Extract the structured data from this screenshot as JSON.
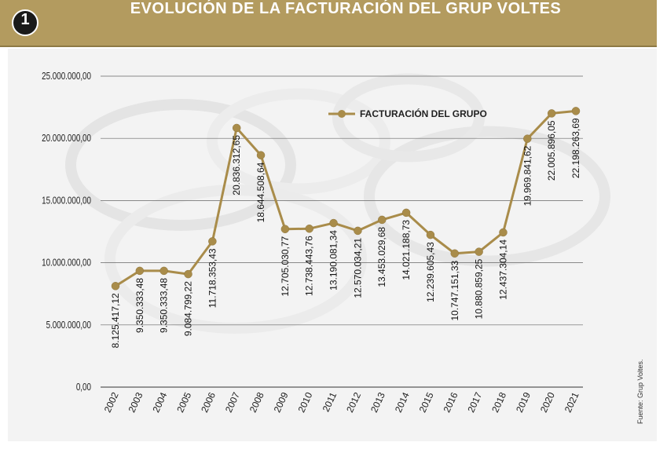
{
  "header": {
    "badge": "1",
    "title": "EVOLUCIÓN DE LA FACTURACIÓN DEL GRUP VOLTES"
  },
  "source": "Fuente: Grup Voltes.",
  "colors": {
    "header": "#b39b5f",
    "line": "#a98c4a",
    "grid": "#666666"
  },
  "chart_data": {
    "type": "line",
    "title": "EVOLUCIÓN DE LA FACTURACIÓN DEL GRUP VOLTES",
    "categories": [
      "2002",
      "2003",
      "2004",
      "2005",
      "2006",
      "2007",
      "2008",
      "2009",
      "2010",
      "2011",
      "2012",
      "2013",
      "2014",
      "2015",
      "2016",
      "2017",
      "2018",
      "2019",
      "2020",
      "2021"
    ],
    "series": [
      {
        "name": "FACTURACIÓN DEL GRUPO",
        "values": [
          8125417.12,
          9350333.48,
          9350333.48,
          9084799.22,
          11718353.43,
          20836312.65,
          18644508.64,
          12705030.77,
          12738443.76,
          13190081.34,
          12570034.21,
          13453029.68,
          14021188.73,
          12239605.43,
          10747151.33,
          10880859.25,
          12437304.14,
          19969841.62,
          22005896.05,
          22198263.69
        ],
        "labels": [
          "8.125.417,12",
          "9.350.333,48",
          "9.350.333,48",
          "9.084.799,22",
          "11.718.353,43",
          "20.836.312,65",
          "18.644.508,64",
          "12.705.030,77",
          "12.738.443,76",
          "13.190.081,34",
          "12.570.034,21",
          "13.453.029,68",
          "14.021.188,73",
          "12.239.605,43",
          "10.747.151,33",
          "10.880.859,25",
          "12.437.304,14",
          "19.969.841,62",
          "22.005.896,05",
          "22.198.263,69"
        ]
      }
    ],
    "yticks": [
      "0,00",
      "5.000.000,00",
      "10.000.000,00",
      "15.000.000,00",
      "20.000.000,00",
      "25.000.000,00"
    ],
    "ylim": [
      0,
      25000000
    ],
    "grid": true,
    "legend": "top-center"
  }
}
